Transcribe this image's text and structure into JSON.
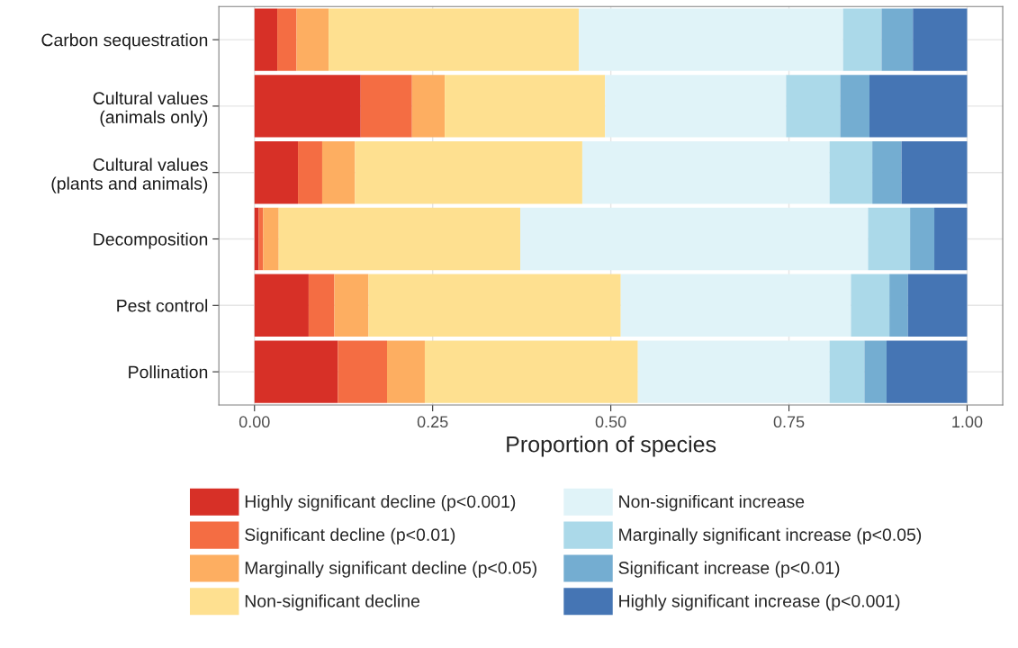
{
  "chart_data": {
    "type": "bar",
    "orientation": "horizontal",
    "stacked": true,
    "xlabel": "Proportion of species",
    "categories": [
      "Carbon sequestration",
      "Cultural values\n(animals only)",
      "Cultural values\n(plants and animals)",
      "Decomposition",
      "Pest control",
      "Pollination"
    ],
    "series": [
      {
        "name": "Highly significant decline (p<0.001)",
        "color": "#d73027",
        "values": [
          0.032,
          0.149,
          0.061,
          0.006,
          0.076,
          0.117
        ]
      },
      {
        "name": "Significant decline (p<0.01)",
        "color": "#f46d43",
        "values": [
          0.027,
          0.072,
          0.034,
          0.006,
          0.036,
          0.069
        ]
      },
      {
        "name": "Marginally significant decline (p<0.05)",
        "color": "#fdae61",
        "values": [
          0.045,
          0.046,
          0.046,
          0.022,
          0.048,
          0.053
        ]
      },
      {
        "name": "Non-significant decline",
        "color": "#fee090",
        "values": [
          0.351,
          0.225,
          0.319,
          0.339,
          0.354,
          0.299
        ]
      },
      {
        "name": "Non-significant increase",
        "color": "#e0f3f8",
        "values": [
          0.371,
          0.254,
          0.347,
          0.488,
          0.323,
          0.269
        ]
      },
      {
        "name": "Marginally significant increase (p<0.05)",
        "color": "#abd9e9",
        "values": [
          0.054,
          0.076,
          0.06,
          0.059,
          0.054,
          0.049
        ]
      },
      {
        "name": "Significant increase (p<0.01)",
        "color": "#74add1",
        "values": [
          0.044,
          0.041,
          0.041,
          0.034,
          0.026,
          0.031
        ]
      },
      {
        "name": "Highly significant increase (p<0.001)",
        "color": "#4575b4",
        "values": [
          0.076,
          0.137,
          0.092,
          0.046,
          0.083,
          0.113
        ]
      }
    ],
    "xlim": [
      -0.05,
      1.05
    ],
    "xticks": [
      {
        "value": 0,
        "label": "0.00"
      },
      {
        "value": 0.25,
        "label": "0.25"
      },
      {
        "value": 0.5,
        "label": "0.50"
      },
      {
        "value": 0.75,
        "label": "0.75"
      },
      {
        "value": 1,
        "label": "1.00"
      }
    ],
    "grid": true,
    "legend": "bottom"
  }
}
